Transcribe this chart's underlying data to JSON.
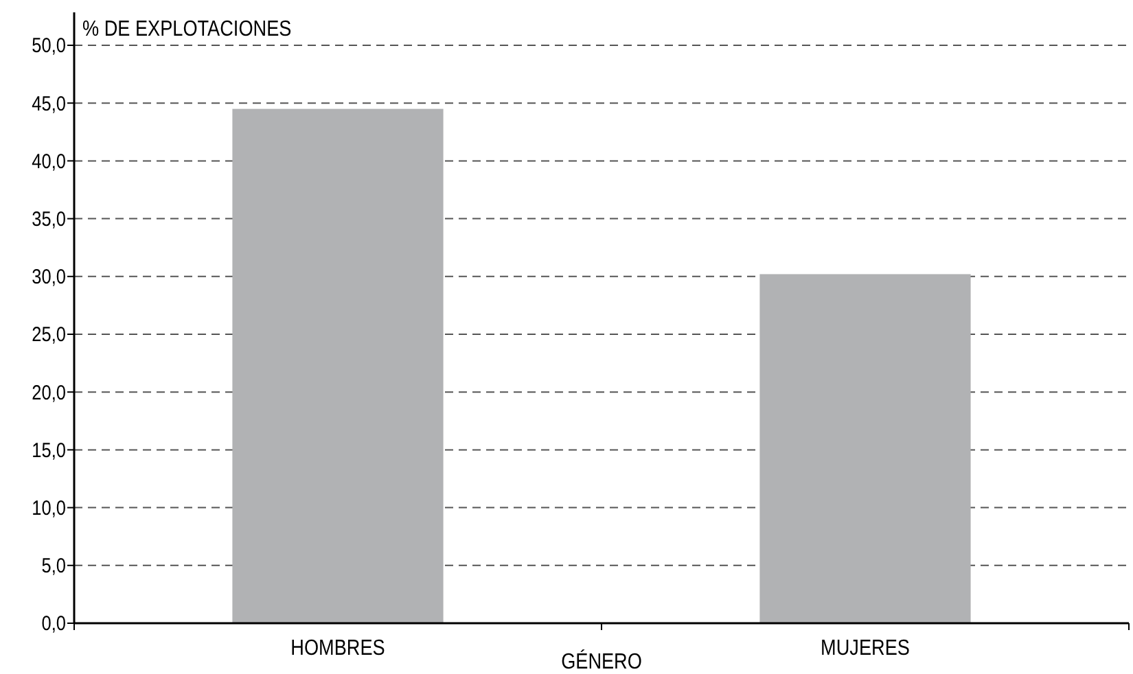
{
  "chart_data": {
    "type": "bar",
    "xlabel": "GÉNERO",
    "ylabel": "% DE EXPLOTACIONES",
    "categories": [
      "HOMBRES",
      "MUJERES"
    ],
    "values": [
      44.5,
      30.2
    ],
    "color": "#b1b2b4",
    "ylim": [
      0,
      50
    ],
    "yticks": [
      {
        "value": 0,
        "label": "0,0"
      },
      {
        "value": 5,
        "label": "5,0"
      },
      {
        "value": 10,
        "label": "10,0"
      },
      {
        "value": 15,
        "label": "15,0"
      },
      {
        "value": 20,
        "label": "20,0"
      },
      {
        "value": 25,
        "label": "25,0"
      },
      {
        "value": 30,
        "label": "30,0"
      },
      {
        "value": 35,
        "label": "35,0"
      },
      {
        "value": 40,
        "label": "40,0"
      },
      {
        "value": 45,
        "label": "45,0"
      },
      {
        "value": 50,
        "label": "50,0"
      }
    ],
    "grid": "y"
  }
}
